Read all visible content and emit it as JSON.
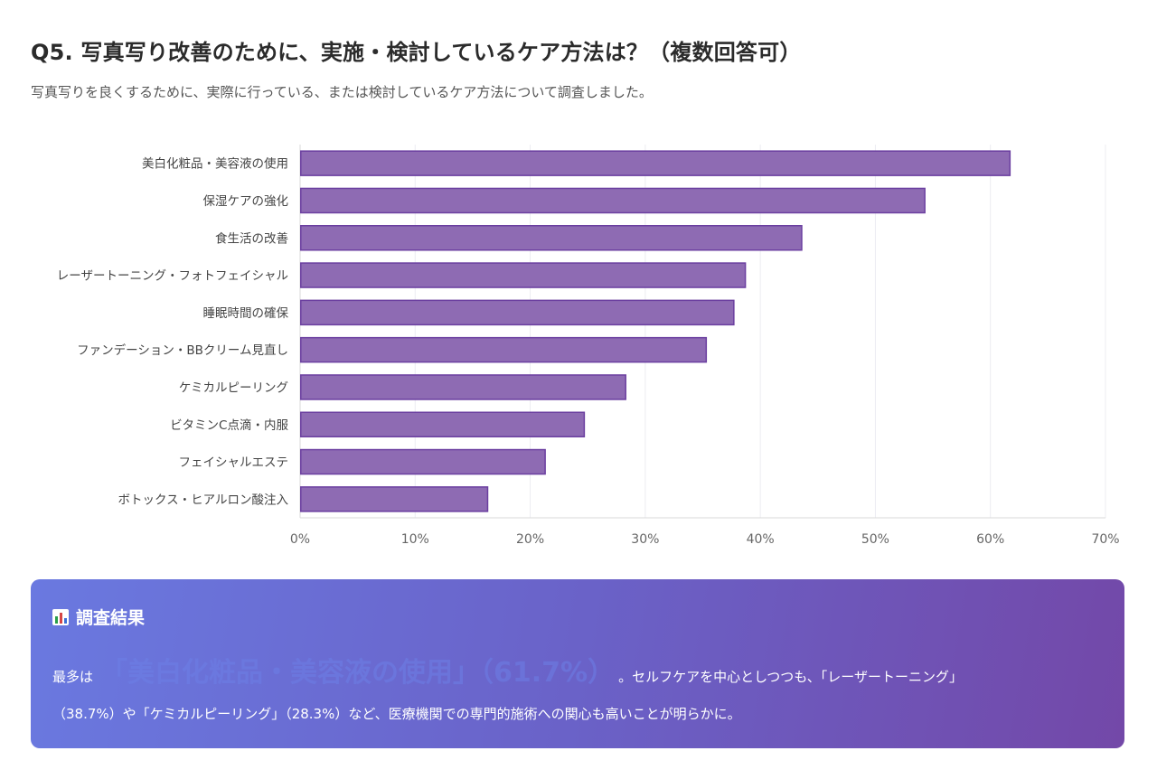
{
  "header": {
    "title": "Q5. 写真写り改善のために、実施・検討しているケア方法は？（複数回答可）",
    "subtitle": "写真写りを良くするために、実際に行っている、または検討しているケア方法について調査しました。"
  },
  "chart_data": {
    "type": "bar",
    "orientation": "horizontal",
    "categories": [
      "美白化粧品・美容液の使用",
      "保湿ケアの強化",
      "食生活の改善",
      "レーザートーニング・フォトフェイシャル",
      "睡眠時間の確保",
      "ファンデーション・BBクリーム見直し",
      "ケミカルピーリング",
      "ビタミンC点滴・内服",
      "フェイシャルエステ",
      "ボトックス・ヒアルロン酸注入"
    ],
    "values": [
      61.7,
      54.3,
      43.6,
      38.7,
      37.7,
      35.3,
      28.3,
      24.7,
      21.3,
      16.3
    ],
    "xlim": [
      0,
      70
    ],
    "xticks": [
      "0%",
      "10%",
      "20%",
      "30%",
      "40%",
      "50%",
      "60%",
      "70%"
    ],
    "unit": "%",
    "bar_color": "#8e6bb3",
    "bar_border_color": "#6b3fa0"
  },
  "result": {
    "heading": "調査結果",
    "icon": "bar-chart-icon",
    "line1_prefix": "最多は",
    "highlight": "「美白化粧品・美容液の使用」（61.7%）",
    "line1_suffix": "。セルフケアを中心としつつも、「レーザートーニング」",
    "line2": "（38.7%）や「ケミカルピーリング」（28.3%）など、医療機関での専門的施術への関心も高いことが明らかに。"
  }
}
